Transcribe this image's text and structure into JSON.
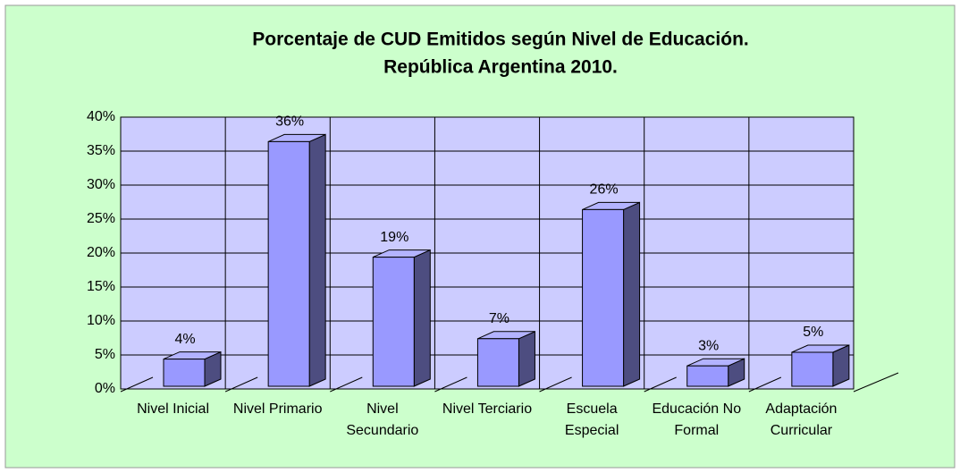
{
  "chart_data": {
    "type": "bar3d",
    "title": "Porcentaje de CUD Emitidos según Nivel de Educación.",
    "subtitle": "República Argentina 2010.",
    "categories": [
      "Nivel Inicial",
      "Nivel Primario",
      "Nivel Secundario",
      "Nivel Terciario",
      "Escuela Especial",
      "Educación No Formal",
      "Adaptación Curricular"
    ],
    "values": [
      4,
      36,
      19,
      7,
      26,
      3,
      5
    ],
    "value_labels": [
      "4%",
      "36%",
      "19%",
      "7%",
      "26%",
      "3%",
      "5%"
    ],
    "color": "#9999ff",
    "ylim": [
      0,
      40
    ],
    "yticks": [
      {
        "value": 0,
        "label": "0%"
      },
      {
        "value": 5,
        "label": "5%"
      },
      {
        "value": 10,
        "label": "10%"
      },
      {
        "value": 15,
        "label": "15%"
      },
      {
        "value": 20,
        "label": "20%"
      },
      {
        "value": 25,
        "label": "25%"
      },
      {
        "value": 30,
        "label": "30%"
      },
      {
        "value": 35,
        "label": "35%"
      },
      {
        "value": 40,
        "label": "40%"
      }
    ],
    "grid": true
  }
}
